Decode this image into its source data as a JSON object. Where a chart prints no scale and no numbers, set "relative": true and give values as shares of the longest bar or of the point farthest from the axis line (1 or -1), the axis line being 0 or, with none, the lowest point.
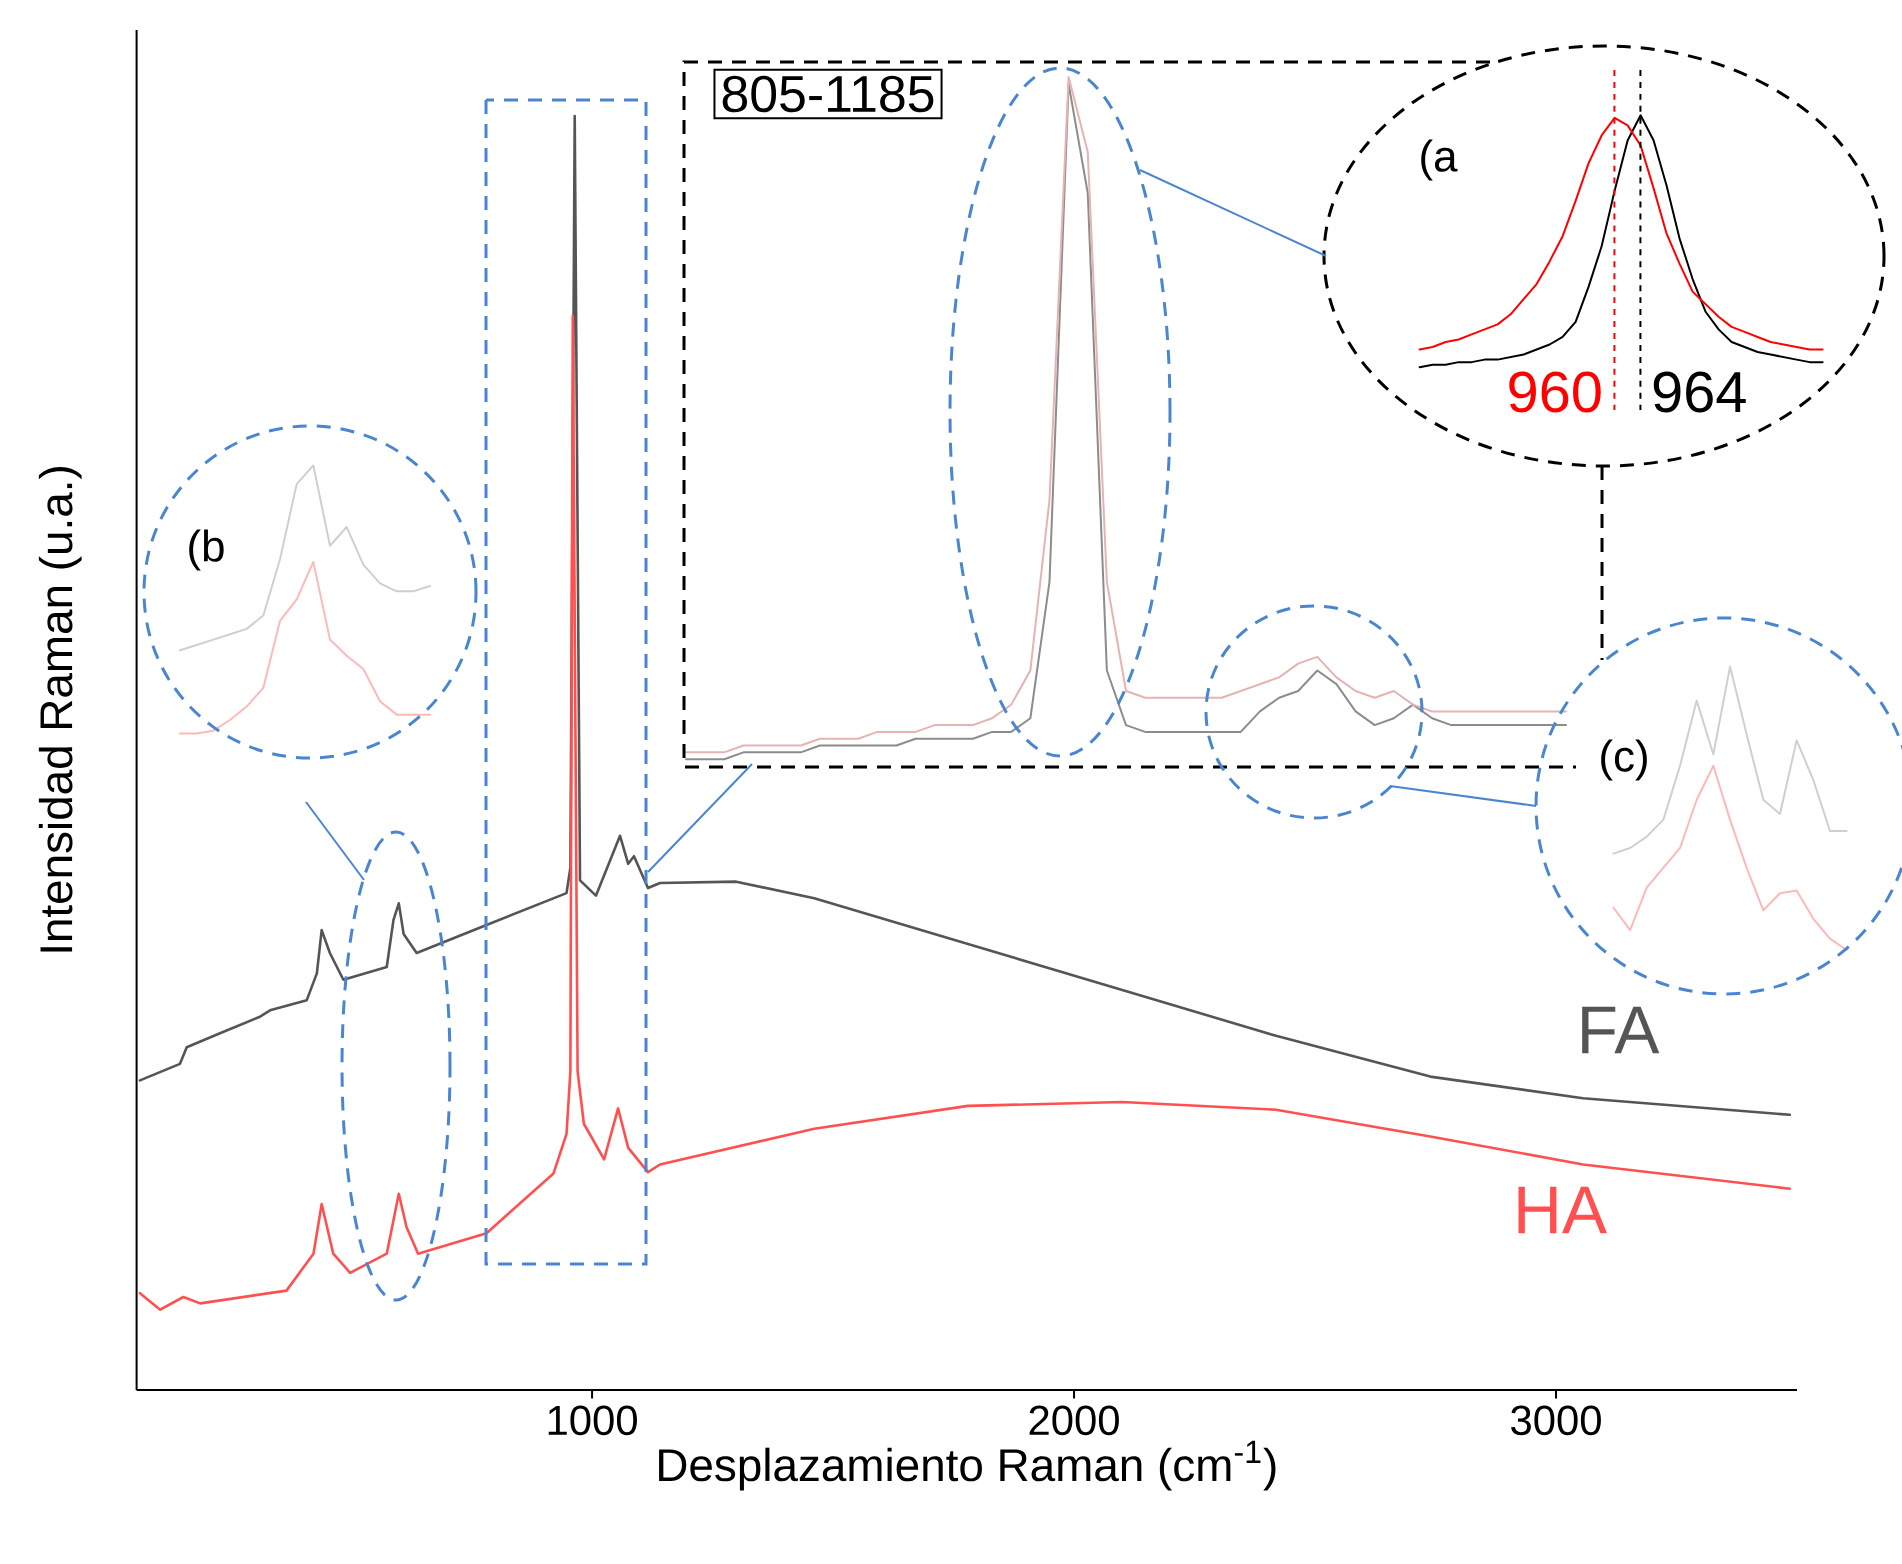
{
  "chart_data": [
    {
      "type": "line",
      "xlabel": "Desplazamiento Raman (cm$^{-1}$)",
      "ylabel": "Intensidad Raman (u.a.)",
      "relative": true,
      "tick_labels": "x",
      "xlim": [
        55,
        3500
      ],
      "xticks": [
        1000,
        2000,
        3000
      ],
      "series": [
        {
          "name": "FA",
          "color": "#555555",
          "x": [
            62,
            145,
            159,
            228,
            311,
            332,
            408,
            429,
            439,
            456,
            484,
            574,
            588,
            599,
            609,
            636,
            768,
            947,
            955,
            964,
            975,
            1008,
            1058,
            1075,
            1087,
            1116,
            1141,
            1299,
            1461,
            1780,
            2100,
            2419,
            2739,
            3056,
            3485
          ],
          "values": [
            0.243,
            0.256,
            0.269,
            0.28,
            0.293,
            0.298,
            0.306,
            0.327,
            0.361,
            0.343,
            0.322,
            0.332,
            0.369,
            0.382,
            0.358,
            0.343,
            0.363,
            0.39,
            0.41,
            1.0,
            0.4,
            0.388,
            0.435,
            0.413,
            0.419,
            0.394,
            0.398,
            0.399,
            0.386,
            0.35,
            0.314,
            0.278,
            0.246,
            0.229,
            0.216
          ]
        },
        {
          "name": "HA",
          "color": "#ff5050",
          "x": [
            62,
            104,
            152,
            187,
            366,
            422,
            439,
            463,
            498,
            574,
            599,
            615,
            639,
            781,
            920,
            947,
            955,
            960,
            970,
            983,
            1025,
            1054,
            1075,
            1116,
            1141,
            1461,
            1780,
            2100,
            2419,
            2739,
            3056,
            3485
          ],
          "values": [
            0.076,
            0.063,
            0.073,
            0.068,
            0.078,
            0.107,
            0.146,
            0.107,
            0.092,
            0.107,
            0.154,
            0.128,
            0.107,
            0.123,
            0.17,
            0.201,
            0.25,
            0.843,
            0.25,
            0.209,
            0.181,
            0.221,
            0.19,
            0.171,
            0.177,
            0.205,
            0.223,
            0.226,
            0.22,
            0.199,
            0.177,
            0.158
          ]
        }
      ]
    },
    {
      "type": "line",
      "relative": true,
      "tick_labels": false,
      "annotations": [
        "805-1185"
      ],
      "categories": [
        null,
        null,
        null,
        null,
        null,
        null,
        null,
        null,
        null,
        null,
        null,
        null,
        null,
        null,
        null,
        null,
        null,
        null,
        null,
        null,
        null,
        null,
        null,
        null,
        null,
        null,
        null,
        null,
        null,
        null,
        null,
        null,
        null,
        null,
        null,
        null,
        null,
        null,
        null,
        null,
        null,
        null,
        null,
        null,
        null,
        null,
        null
      ],
      "series": [
        {
          "color": "#8c8c8c",
          "values": [
            0,
            0,
            0,
            0.01,
            0.01,
            0.01,
            0.01,
            0.02,
            0.02,
            0.02,
            0.02,
            0.02,
            0.03,
            0.03,
            0.03,
            0.03,
            0.04,
            0.04,
            0.06,
            0.26,
            0.99,
            0.83,
            0.13,
            0.05,
            0.04,
            0.04,
            0.04,
            0.04,
            0.04,
            0.04,
            0.07,
            0.09,
            0.1,
            0.13,
            0.11,
            0.07,
            0.05,
            0.06,
            0.08,
            0.06,
            0.05,
            0.05,
            0.05,
            0.05,
            0.05,
            0.05,
            0.05
          ]
        },
        {
          "color": "#e6b3b3",
          "values": [
            0.01,
            0.01,
            0.01,
            0.02,
            0.02,
            0.02,
            0.02,
            0.03,
            0.03,
            0.03,
            0.04,
            0.04,
            0.04,
            0.05,
            0.05,
            0.05,
            0.06,
            0.08,
            0.13,
            0.38,
            1.0,
            0.89,
            0.26,
            0.1,
            0.09,
            0.09,
            0.09,
            0.09,
            0.09,
            0.1,
            0.11,
            0.12,
            0.14,
            0.15,
            0.12,
            0.1,
            0.09,
            0.1,
            0.08,
            0.07,
            0.07,
            0.07,
            0.07,
            0.07,
            0.07,
            0.07,
            0.07
          ]
        }
      ]
    },
    {
      "type": "line",
      "relative": true,
      "tick_labels": false,
      "annotations": [
        "(a",
        "960",
        "964"
      ],
      "categories": [
        null,
        null,
        null,
        null,
        null,
        null,
        null,
        null,
        null,
        null,
        null,
        null,
        null,
        null,
        null,
        null,
        null,
        null,
        null,
        null,
        null,
        null,
        null,
        null,
        null,
        null,
        null,
        null,
        null,
        null,
        null,
        null
      ],
      "series": [
        {
          "color": "#000000",
          "values": [
            0,
            0.01,
            0.01,
            0.02,
            0.02,
            0.03,
            0.03,
            0.04,
            0.05,
            0.07,
            0.09,
            0.12,
            0.18,
            0.32,
            0.48,
            0.7,
            0.9,
            1.0,
            0.9,
            0.72,
            0.51,
            0.35,
            0.22,
            0.15,
            0.1,
            0.08,
            0.06,
            0.05,
            0.04,
            0.03,
            0.02,
            0.02
          ]
        },
        {
          "color": "#ff0000",
          "values": [
            0.07,
            0.08,
            0.1,
            0.11,
            0.13,
            0.15,
            0.17,
            0.21,
            0.27,
            0.33,
            0.42,
            0.52,
            0.66,
            0.81,
            0.92,
            0.99,
            0.96,
            0.88,
            0.71,
            0.53,
            0.41,
            0.3,
            0.25,
            0.2,
            0.16,
            0.14,
            0.12,
            0.1,
            0.09,
            0.08,
            0.07,
            0.07
          ]
        }
      ]
    },
    {
      "type": "line",
      "relative": true,
      "tick_labels": false,
      "annotations": [
        "(b"
      ],
      "categories": [
        null,
        null,
        null,
        null,
        null,
        null,
        null,
        null,
        null,
        null,
        null,
        null,
        null,
        null,
        null,
        null
      ],
      "series": [
        {
          "color": "#cfcfcf",
          "values": [
            0.31,
            0.33,
            0.35,
            0.37,
            0.39,
            0.44,
            0.65,
            0.93,
            1.0,
            0.7,
            0.77,
            0.63,
            0.56,
            0.53,
            0.53,
            0.55
          ]
        },
        {
          "color": "#ffb8b8",
          "values": [
            0,
            0,
            0.01,
            0.05,
            0.1,
            0.17,
            0.42,
            0.5,
            0.64,
            0.35,
            0.29,
            0.24,
            0.12,
            0.07,
            0.07,
            0.07
          ]
        }
      ]
    },
    {
      "type": "line",
      "relative": true,
      "tick_labels": false,
      "annotations": [
        "(c)"
      ],
      "categories": [
        null,
        null,
        null,
        null,
        null,
        null,
        null,
        null,
        null,
        null,
        null,
        null,
        null,
        null,
        null
      ],
      "series": [
        {
          "color": "#cfcfcf",
          "values": [
            0.34,
            0.36,
            0.4,
            0.46,
            0.65,
            0.88,
            0.69,
            1.0,
            0.76,
            0.53,
            0.48,
            0.74,
            0.6,
            0.42,
            0.42
          ]
        },
        {
          "color": "#ffb8b8",
          "values": [
            0.15,
            0.07,
            0.22,
            0.29,
            0.36,
            0.53,
            0.65,
            0.46,
            0.29,
            0.14,
            0.2,
            0.21,
            0.11,
            0.04,
            0
          ]
        }
      ]
    }
  ]
}
